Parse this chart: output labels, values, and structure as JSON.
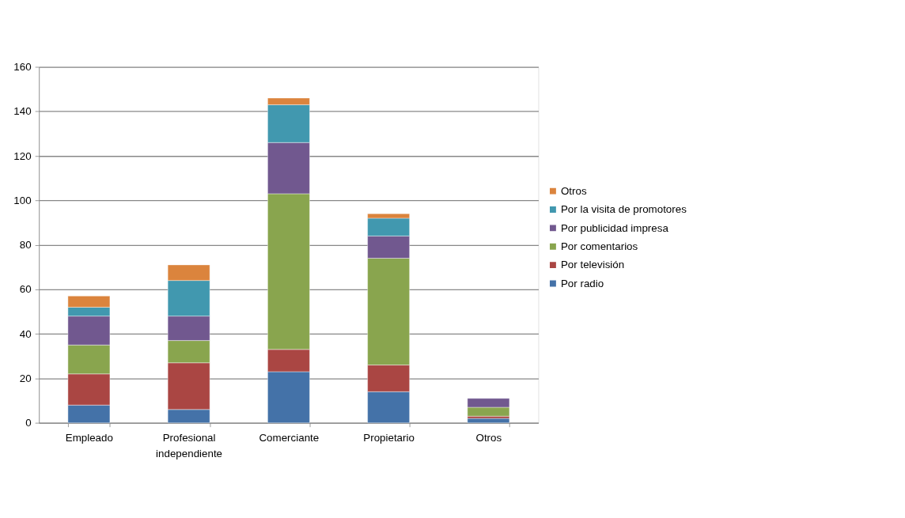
{
  "chart_data": {
    "type": "bar",
    "stacked": true,
    "categories": [
      "Empleado",
      "Profesional independiente",
      "Comerciante",
      "Propietario",
      "Otros"
    ],
    "series": [
      {
        "name": "Por radio",
        "color": "#4472a8",
        "values": [
          8,
          6,
          23,
          14,
          2
        ]
      },
      {
        "name": "Por televisión",
        "color": "#aa4643",
        "values": [
          14,
          21,
          10,
          12,
          1
        ]
      },
      {
        "name": "Por comentarios",
        "color": "#89a54e",
        "values": [
          13,
          10,
          70,
          48,
          4
        ]
      },
      {
        "name": "Por publicidad impresa",
        "color": "#71588f",
        "values": [
          13,
          11,
          23,
          10,
          4
        ]
      },
      {
        "name": "Por la visita de promotores",
        "color": "#4198af",
        "values": [
          4,
          16,
          17,
          8,
          0
        ]
      },
      {
        "name": "Otros",
        "color": "#db843d",
        "values": [
          5,
          7,
          3,
          2,
          0
        ]
      }
    ],
    "ylim": [
      0,
      160
    ],
    "yticks": [
      0,
      20,
      40,
      60,
      80,
      100,
      120,
      140,
      160
    ],
    "grid": "y",
    "legend": "right"
  }
}
